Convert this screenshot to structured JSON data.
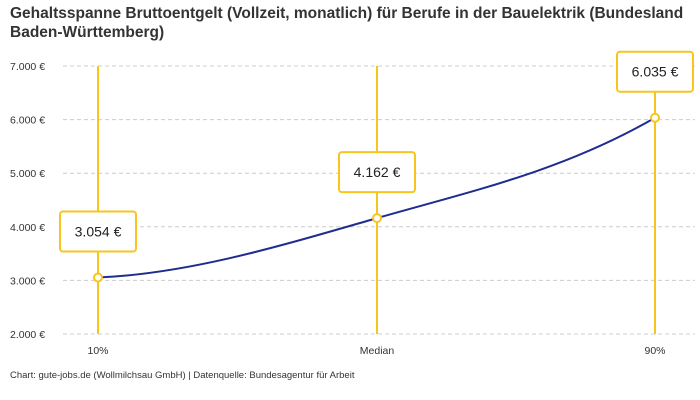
{
  "chart_data": {
    "type": "line",
    "title": "Gehaltsspanne Bruttoentgelt (Vollzeit, monatlich) für Berufe in der Bauelektrik (Bundesland Baden-Württemberg)",
    "categories": [
      "10%",
      "Median",
      "90%"
    ],
    "values": [
      3054,
      4162,
      6035
    ],
    "data_labels": [
      "3.054 €",
      "4.162 €",
      "6.035 €"
    ],
    "ylim": [
      2000,
      7000
    ],
    "yticks": [
      2000,
      3000,
      4000,
      5000,
      6000,
      7000
    ],
    "ytick_labels": [
      "2.000 €",
      "3.000 €",
      "4.000 €",
      "5.000 €",
      "6.000 €",
      "7.000 €"
    ],
    "xlabel": "",
    "ylabel": "",
    "grid": "horizontal dashed",
    "colors": {
      "line": "#1e2d8f",
      "marker": "#f7c51e",
      "grid": "#cccccc"
    }
  },
  "footer": "Chart: gute-jobs.de (Wollmilchsau GmbH) | Datenquelle: Bundesagentur für Arbeit"
}
